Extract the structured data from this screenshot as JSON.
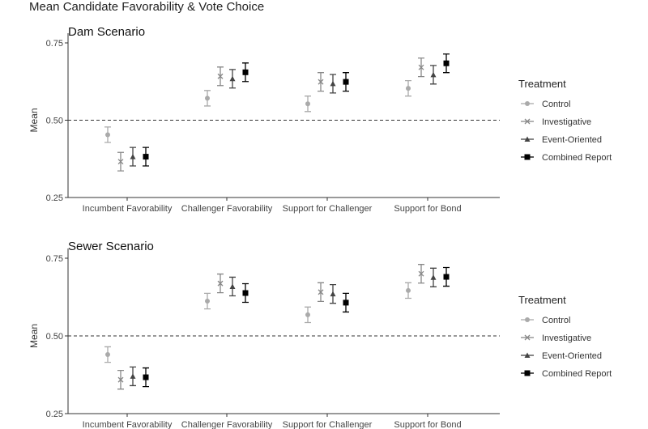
{
  "title": "Mean Candidate Favorability & Vote Choice",
  "legend": {
    "title": "Treatment",
    "entries": [
      "Control",
      "Investigative",
      "Event-Oriented",
      "Combined Report"
    ]
  },
  "colors": {
    "Control": "#aaaaaa",
    "Investigative": "#888888",
    "Event-Oriented": "#444444",
    "Combined Report": "#000000"
  },
  "chart_data": [
    {
      "type": "scatter",
      "title": "Dam Scenario",
      "ylabel": "Mean",
      "ylim": [
        0.25,
        0.75
      ],
      "yticks": [
        "0.25",
        "0.50",
        "0.75"
      ],
      "reference_line": 0.5,
      "categories": [
        "Incumbent Favorability",
        "Challenger Favorability",
        "Support for Challenger",
        "Support for Bond"
      ],
      "series": [
        {
          "name": "Control",
          "values": [
            0.453,
            0.571,
            0.553,
            0.603
          ],
          "error": 0.025
        },
        {
          "name": "Investigative",
          "values": [
            0.366,
            0.642,
            0.624,
            0.671
          ],
          "error": 0.03
        },
        {
          "name": "Event-Oriented",
          "values": [
            0.382,
            0.634,
            0.618,
            0.647
          ],
          "error": 0.03
        },
        {
          "name": "Combined Report",
          "values": [
            0.382,
            0.655,
            0.624,
            0.684
          ],
          "error": 0.03
        }
      ]
    },
    {
      "type": "scatter",
      "title": "Sewer Scenario",
      "ylabel": "Mean",
      "ylim": [
        0.25,
        0.75
      ],
      "yticks": [
        "0.25",
        "0.50",
        "0.75"
      ],
      "reference_line": 0.5,
      "categories": [
        "Incumbent Favorability",
        "Challenger Favorability",
        "Support for Challenger",
        "Support for Bond"
      ],
      "series": [
        {
          "name": "Control",
          "values": [
            0.44,
            0.612,
            0.568,
            0.646
          ],
          "error": 0.025
        },
        {
          "name": "Investigative",
          "values": [
            0.359,
            0.669,
            0.641,
            0.7
          ],
          "error": 0.03
        },
        {
          "name": "Event-Oriented",
          "values": [
            0.37,
            0.659,
            0.635,
            0.688
          ],
          "error": 0.03
        },
        {
          "name": "Combined Report",
          "values": [
            0.367,
            0.638,
            0.607,
            0.69
          ],
          "error": 0.03
        }
      ]
    }
  ]
}
